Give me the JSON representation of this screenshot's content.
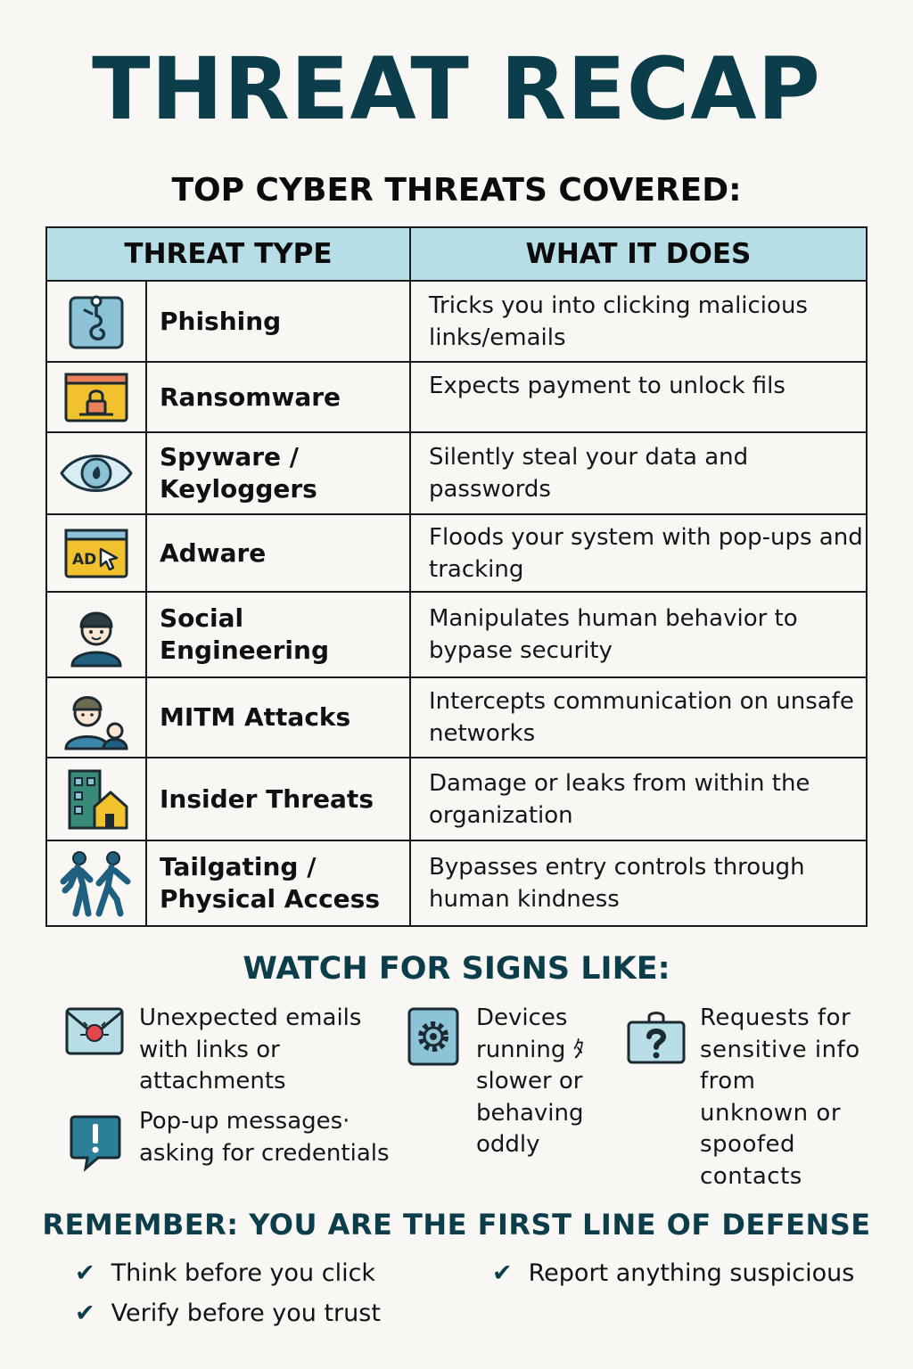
{
  "title": "THREAT RECAP",
  "subtitle": "TOP CYBER THREATS COVERED:",
  "table": {
    "headers": [
      "THREAT TYPE",
      "WHAT IT DOES"
    ],
    "rows": [
      {
        "icon": "fish-hook-icon",
        "type": "Phishing",
        "desc": "Tricks you into clicking malicious links/emails"
      },
      {
        "icon": "locked-screen-icon",
        "type": "Ransomware",
        "desc": "Expects payment to unlock fils"
      },
      {
        "icon": "eye-icon",
        "type": "Spyware / Keyloggers",
        "desc": "Silently steal your data and passwords"
      },
      {
        "icon": "ad-window-icon",
        "type": "Adware",
        "desc": "Floods your system with pop-ups and tracking"
      },
      {
        "icon": "person-with-cap-icon",
        "type": "Social Engineering",
        "desc": "Manipulates human behavior to bypase security"
      },
      {
        "icon": "two-people-icon",
        "type": "MITM Attacks",
        "desc": "Intercepts communication on unsafe networks"
      },
      {
        "icon": "building-house-icon",
        "type": "Insider Threats",
        "desc": "Damage or leaks from within the organization"
      },
      {
        "icon": "walking-people-icon",
        "type": "Tailgating / Physical Access",
        "desc": "Bypasses entry controls through human kindness"
      }
    ]
  },
  "signs": {
    "heading": "WATCH FOR SIGNS LIKE:",
    "items": [
      {
        "icon": "infected-envelope-icon",
        "text": "Unexpected emails with links or attachments"
      },
      {
        "icon": "alert-bubble-icon",
        "text": "Pop-up messages· asking for credentials"
      },
      {
        "icon": "gear-icon",
        "text": "Devices running ﾀ slower or behaving oddly"
      },
      {
        "icon": "lock-clipboard-icon",
        "text": "Requests for sensitive info from unknown or spoofed contacts"
      }
    ]
  },
  "remember": {
    "heading": "REMEMBER: YOU ARE THE FIRST LINE OF DEFENSE",
    "tips": [
      "Think before you click",
      "Verify before you trust",
      "Report anything suspicious"
    ]
  },
  "colors": {
    "accent": "#0c3d4a",
    "header_fill": "#b7dde6",
    "icon_blue": "#8cc3d6",
    "icon_yellow": "#f2c12e"
  }
}
